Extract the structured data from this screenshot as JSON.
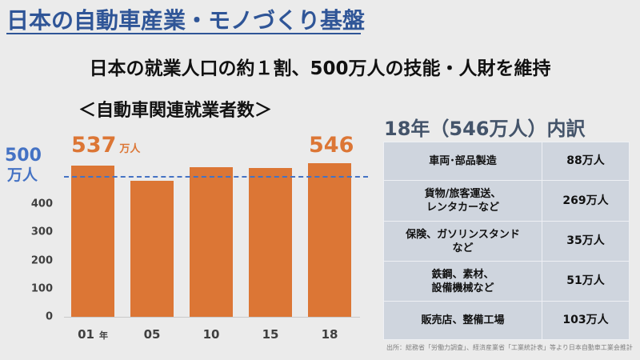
{
  "header": {
    "title": "日本の自動車産業・モノづくり基盤",
    "subtitle": "日本の就業人口の約１割、500万人の技能・人財を維持"
  },
  "chart": {
    "heading": "＜自動車関連就業者数＞",
    "reference": {
      "value": "500",
      "unit": "万人",
      "color": "#4472c4"
    },
    "y_ticks": [
      "400",
      "300",
      "200",
      "100",
      "0"
    ],
    "x_ticks": [
      "01",
      "05",
      "10",
      "15",
      "18"
    ],
    "x_unit": "年",
    "label_first": {
      "value": "537",
      "unit": "万人"
    },
    "label_last": {
      "value": "546"
    },
    "bar_color": "#dc7635"
  },
  "chart_data": {
    "type": "bar",
    "title": "＜自動車関連就業者数＞",
    "categories": [
      "01",
      "05",
      "10",
      "15",
      "18"
    ],
    "values": [
      537,
      483,
      531,
      528,
      546
    ],
    "xlabel": "年",
    "ylabel": "万人",
    "ylim": [
      0,
      600
    ],
    "y_ticks": [
      0,
      100,
      200,
      300,
      400
    ],
    "reference_line": {
      "value": 500,
      "label": "500万人",
      "style": "dashed",
      "color": "#4472c4"
    },
    "data_labels": {
      "01": "537万人",
      "18": "546"
    },
    "grid": false,
    "legend": null
  },
  "breakdown": {
    "title": "18年（546万人）内訳",
    "rows": [
      {
        "category": [
          "車両･部品製造"
        ],
        "value": "88万人"
      },
      {
        "category": [
          "貨物/旅客運送、",
          "レンタカーなど"
        ],
        "value": "269万人"
      },
      {
        "category": [
          "保険、ガソリンスタンド",
          "など"
        ],
        "value": "35万人"
      },
      {
        "category": [
          "鉄鋼、素材、",
          "設備機械など"
        ],
        "value": "51万人"
      },
      {
        "category": [
          "販売店、整備工場"
        ],
        "value": "103万人"
      }
    ]
  },
  "source": "出所：総務省「労働力調査」、経済産業省「工業統計表」等より日本自動車工業会推計"
}
